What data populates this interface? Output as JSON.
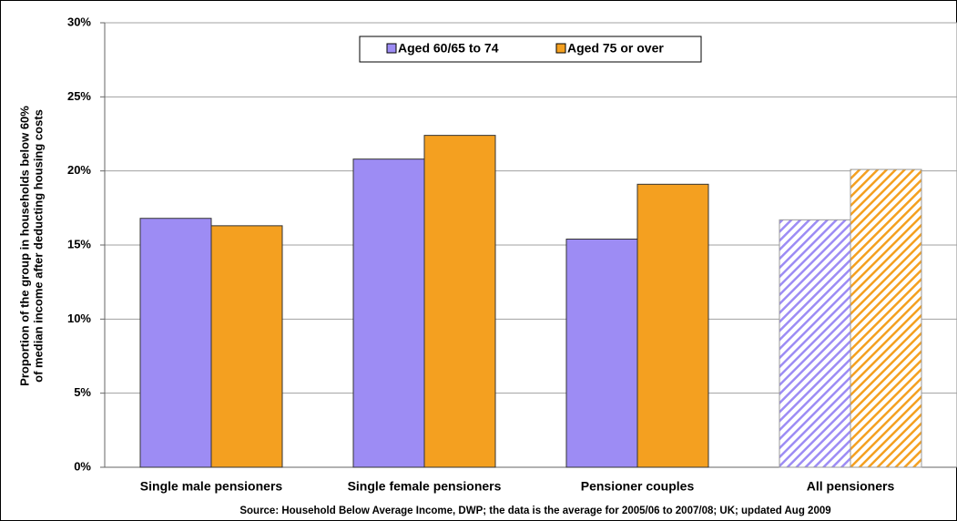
{
  "chart_data": {
    "type": "bar",
    "y_label_lines": [
      "Proportion of the group in households below 60%",
      "of median income after deducting housing costs"
    ],
    "source": "Source: Household Below Average Income, DWP; the data is the average for 2005/06 to 2007/08; UK; updated Aug 2009",
    "categories": [
      "Single male pensioners",
      "Single female pensioners",
      "Pensioner couples",
      "All pensioners"
    ],
    "series": [
      {
        "name": "Aged 60/65 to 74",
        "color": "#9d8cf4",
        "values": [
          16.8,
          20.8,
          15.4,
          16.7
        ]
      },
      {
        "name": "Aged 75 or over",
        "color": "#f4a020",
        "values": [
          16.3,
          22.4,
          19.1,
          20.1
        ]
      }
    ],
    "patterns": [
      "solid",
      "solid",
      "solid",
      "hatched"
    ],
    "ylim": [
      0,
      30
    ],
    "yticks": [
      {
        "value": 0,
        "label": "0%"
      },
      {
        "value": 5,
        "label": "5%"
      },
      {
        "value": 10,
        "label": "10%"
      },
      {
        "value": 15,
        "label": "15%"
      },
      {
        "value": 20,
        "label": "20%"
      },
      {
        "value": 25,
        "label": "25%"
      },
      {
        "value": 30,
        "label": "30%"
      }
    ],
    "grid": true,
    "legend": "top"
  }
}
